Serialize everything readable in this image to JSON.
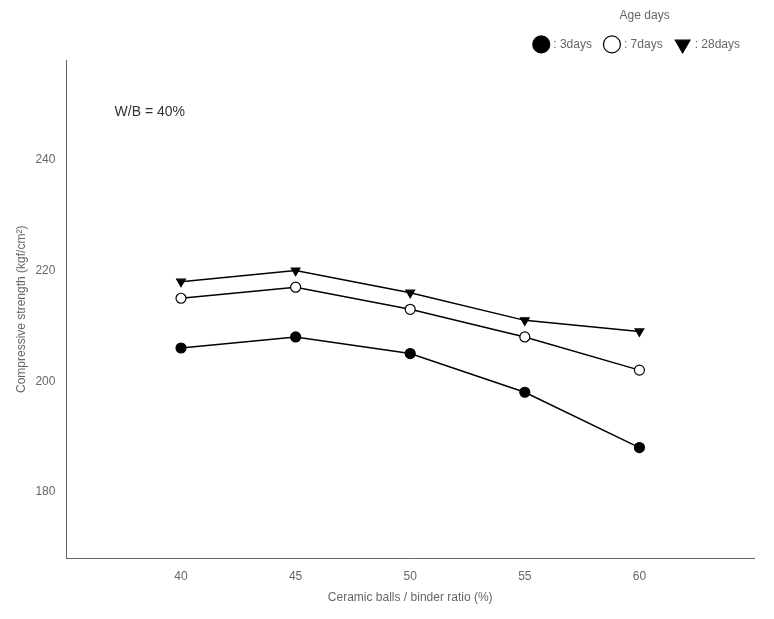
{
  "chart_data": {
    "type": "line",
    "x": [
      40,
      45,
      50,
      55,
      60
    ],
    "series": [
      {
        "name": ": 3days",
        "color": "black",
        "marker": "circle",
        "values": [
          206,
          208,
          205,
          198,
          188
        ]
      },
      {
        "name": ": 7days",
        "color": "black",
        "marker": "circle_open",
        "values": [
          215,
          217,
          213,
          208,
          202
        ]
      },
      {
        "name": ": 28days",
        "color": "black",
        "marker": "triangle_down",
        "values": [
          218,
          220,
          216,
          211,
          209
        ]
      }
    ],
    "xlabel": "Ceramic balls / binder ratio (%)",
    "ylabel": "Compressive strength (kgf/cm²)",
    "xlim": [
      35,
      65
    ],
    "xticks": [
      40,
      45,
      50,
      55,
      60
    ],
    "ylim": [
      168,
      258
    ],
    "yticks": [
      180,
      200,
      220,
      240
    ],
    "annotation": "W/B = 40%",
    "legend_title": "Age days",
    "legend": "upper right",
    "grid": false
  }
}
